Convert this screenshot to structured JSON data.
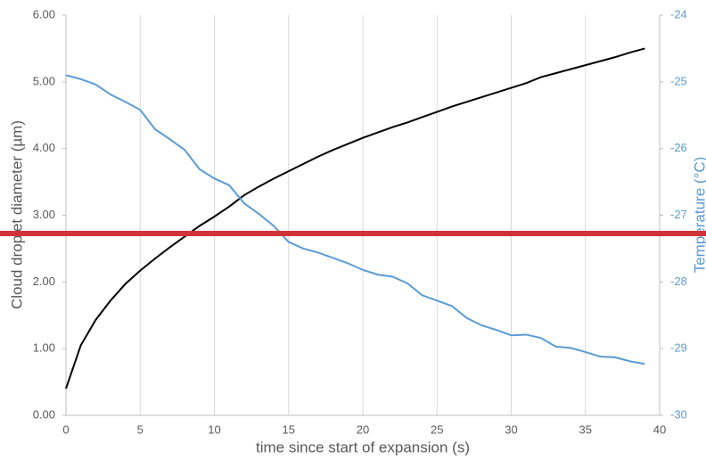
{
  "chart_data": {
    "type": "line",
    "xlabel": "time since start of expansion (s)",
    "ylabel": "Cloud droplet diameter (µm)",
    "y2label": "Temperature (°C)",
    "x": [
      0,
      1,
      2,
      3,
      4,
      5,
      6,
      7,
      8,
      9,
      10,
      11,
      12,
      13,
      14,
      15,
      16,
      17,
      18,
      19,
      20,
      21,
      22,
      23,
      24,
      25,
      26,
      27,
      28,
      29,
      30,
      31,
      32,
      33,
      34,
      35,
      36,
      37,
      38,
      39
    ],
    "series": [
      {
        "color": "#000000",
        "values": [
          0.4,
          1.05,
          1.43,
          1.72,
          1.97,
          2.17,
          2.35,
          2.52,
          2.68,
          2.84,
          2.98,
          3.13,
          3.3,
          3.43,
          3.55,
          3.66,
          3.77,
          3.88,
          3.98,
          4.07,
          4.16,
          4.24,
          4.32,
          4.39,
          4.47,
          4.55,
          4.63,
          4.7,
          4.77,
          4.84,
          4.91,
          4.98,
          5.07,
          5.13,
          5.19,
          5.25,
          5.31,
          5.37,
          5.44,
          5.5
        ]
      },
      {
        "color": "#5b9bd5",
        "axis": "y2",
        "values": [
          -24.9,
          -24.96,
          -25.04,
          -25.19,
          -25.3,
          -25.42,
          -25.71,
          -25.86,
          -26.02,
          -26.31,
          -26.45,
          -26.55,
          -26.82,
          -26.98,
          -27.16,
          -27.4,
          -27.5,
          -27.56,
          -27.64,
          -27.72,
          -27.82,
          -27.89,
          -27.92,
          -28.02,
          -28.2,
          -28.28,
          -28.36,
          -28.54,
          -28.65,
          -28.72,
          -28.8,
          -28.79,
          -28.84,
          -28.97,
          -28.99,
          -29.05,
          -29.12,
          -29.13,
          -29.19,
          -29.23
        ]
      }
    ],
    "xlim": [
      0,
      40
    ],
    "xticks": [
      0,
      5,
      10,
      15,
      20,
      25,
      30,
      35,
      40
    ],
    "ylim": [
      0,
      6
    ],
    "yticks": [
      {
        "value": 0,
        "label": "0.00"
      },
      {
        "value": 1,
        "label": "1.00"
      },
      {
        "value": 2,
        "label": "2.00"
      },
      {
        "value": 3,
        "label": "3.00"
      },
      {
        "value": 4,
        "label": "4.00"
      },
      {
        "value": 5,
        "label": "5.00"
      },
      {
        "value": 6,
        "label": "6.00"
      }
    ],
    "y2lim": [
      -30,
      -24
    ],
    "y2ticks": [
      -30,
      -29,
      -28,
      -27,
      -26,
      -25,
      -24
    ],
    "grid": "x"
  }
}
